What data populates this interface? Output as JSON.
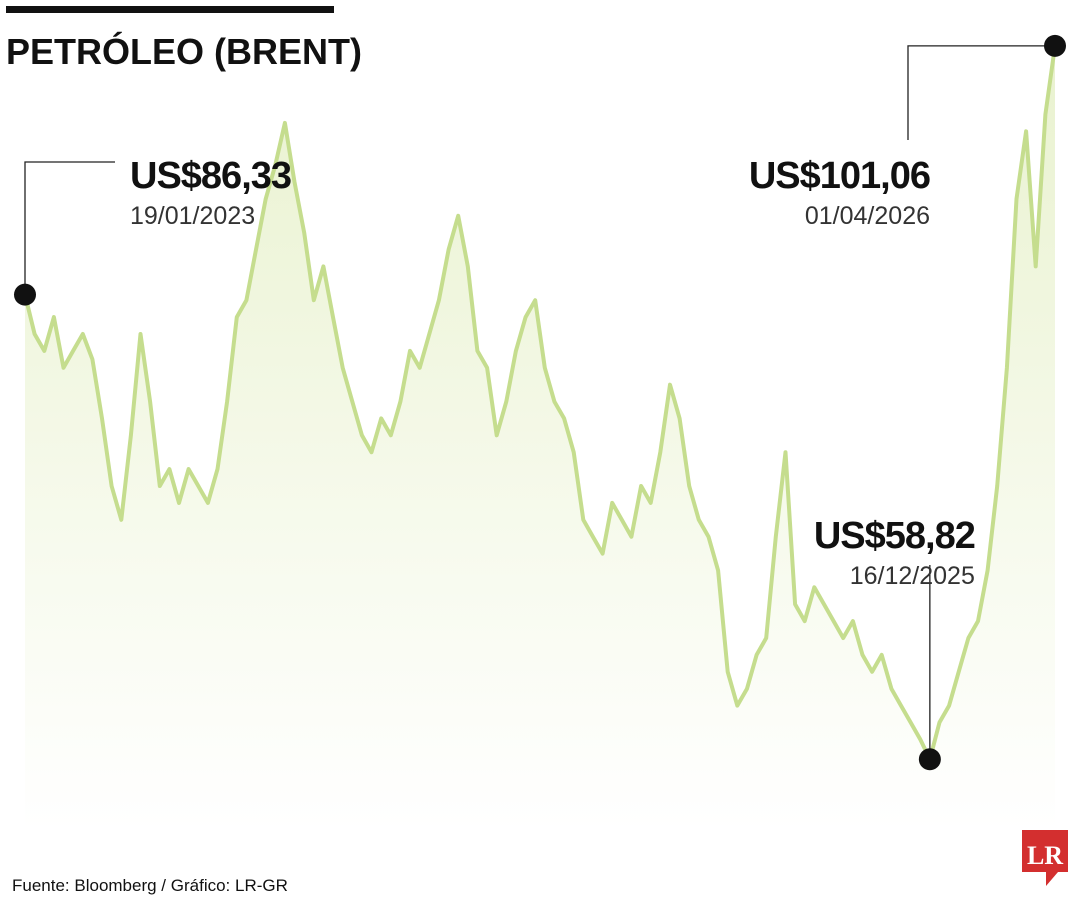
{
  "chart_data": {
    "type": "line",
    "title": "PETRÓLEO (BRENT)",
    "source": "Fuente: Bloomberg / Gráfico: LR-GR",
    "logo": "LR",
    "color": "#c5dd8e",
    "values": [
      86.33,
      84,
      83,
      85,
      82,
      83,
      84,
      82.5,
      79,
      75,
      73,
      78,
      84,
      80,
      75,
      76,
      74,
      76,
      75,
      74,
      76,
      80,
      85,
      86,
      89,
      92,
      94,
      96.5,
      93,
      90,
      86,
      88,
      85,
      82,
      80,
      78,
      77,
      79,
      78,
      80,
      83,
      82,
      84,
      86,
      89,
      91,
      88,
      83,
      82,
      78,
      80,
      83,
      85,
      86,
      82,
      80,
      79,
      77,
      73,
      72,
      71,
      74,
      73,
      72,
      75,
      74,
      77,
      81,
      79,
      75,
      73,
      72,
      70,
      64,
      62,
      63,
      65,
      66,
      72,
      77,
      68,
      67,
      69,
      68,
      67,
      66,
      67,
      65,
      64,
      65,
      63,
      62,
      61,
      60,
      58.82,
      61,
      62,
      64,
      66,
      67,
      70,
      75,
      82,
      92,
      96,
      88,
      97,
      101.06
    ],
    "ylim": [
      57,
      102
    ],
    "annotations": [
      {
        "value": 86.33,
        "value_label": "US$86,33",
        "date": "19/01/2023"
      },
      {
        "value": 101.06,
        "value_label": "US$101,06",
        "date": "01/04/2026"
      },
      {
        "value": 58.82,
        "value_label": "US$58,82",
        "date": "16/12/2025"
      }
    ]
  }
}
